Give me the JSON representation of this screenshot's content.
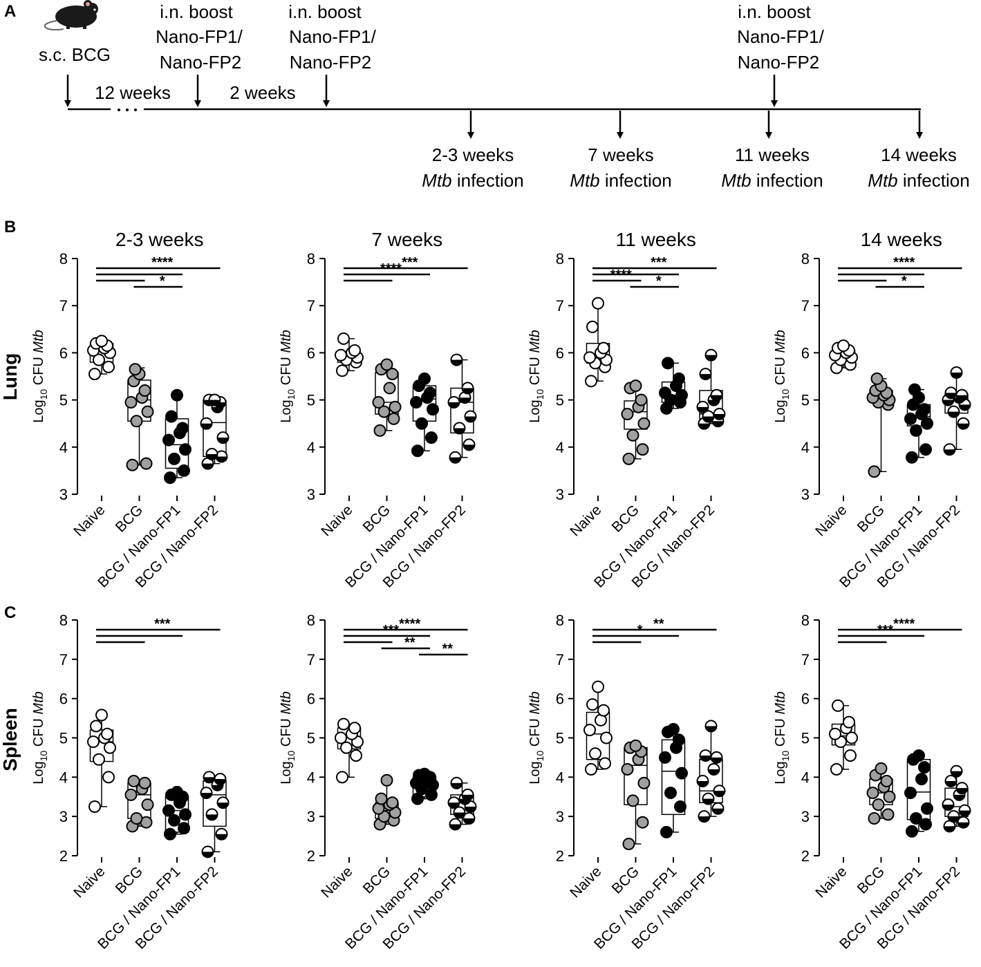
{
  "panels": {
    "a": "A",
    "b": "B",
    "c": "C"
  },
  "timeline": {
    "prime": "s.c. BCG",
    "boost_line1": "i.n. boost",
    "boost_line2": "Nano-FP1/",
    "boost_line3": "Nano-FP2",
    "gap_12": "12 weeks",
    "gap_2": "2 weeks",
    "infections": [
      {
        "time": "2-3 weeks",
        "label": "Mtb",
        "suffix": " infection"
      },
      {
        "time": "7 weeks",
        "label": "Mtb",
        "suffix": " infection"
      },
      {
        "time": "11 weeks",
        "label": "Mtb",
        "suffix": " infection"
      },
      {
        "time": "14 weeks",
        "label": "Mtb",
        "suffix": " infection"
      }
    ]
  },
  "row_labels": {
    "lung": "Lung",
    "spleen": "Spleen"
  },
  "ylabel": {
    "prefix": "Log",
    "sub": "10",
    "middle": " CFU ",
    "italic": "Mtb"
  },
  "groups": [
    "Naive",
    "BCG",
    "BCG / Nano-FP1",
    "BCG / Nano-FP2"
  ],
  "colors": {
    "naive_fill": "#ffffff",
    "bcg_fill": "#a0a0a0",
    "fp1_fill": "#000000",
    "fp2_fill": "half-white-half-black",
    "stroke": "#000000"
  },
  "chart_data": [
    {
      "type": "box-scatter",
      "organ": "Lung",
      "title": "2-3 weeks",
      "ylim": [
        3,
        8
      ],
      "yticks": [
        3,
        4,
        5,
        6,
        7,
        8
      ],
      "categories": [
        "Naive",
        "BCG",
        "BCG / Nano-FP1",
        "BCG / Nano-FP2"
      ],
      "series": [
        {
          "name": "Naive",
          "box": [
            5.55,
            5.8,
            6.05,
            6.2,
            6.25
          ],
          "points": [
            5.55,
            5.7,
            5.85,
            6.0,
            6.05,
            6.1,
            6.15,
            6.2,
            6.25
          ]
        },
        {
          "name": "BCG",
          "box": [
            3.62,
            4.55,
            5.0,
            5.42,
            5.68
          ],
          "points": [
            3.62,
            3.65,
            4.55,
            4.75,
            4.95,
            5.05,
            5.2,
            5.4,
            5.55,
            5.65
          ]
        },
        {
          "name": "BCG / Nano-FP1",
          "box": [
            3.35,
            3.55,
            4.05,
            4.6,
            5.1
          ],
          "points": [
            3.35,
            3.5,
            3.75,
            3.95,
            4.15,
            4.3,
            4.4,
            4.65,
            5.1
          ]
        },
        {
          "name": "BCG / Nano-FP2",
          "box": [
            3.65,
            3.8,
            4.52,
            4.98,
            5.0
          ],
          "points": [
            3.65,
            3.8,
            3.85,
            4.2,
            4.5,
            4.85,
            4.95,
            5.0,
            5.0
          ]
        }
      ],
      "significance": [
        {
          "from": 0,
          "to": 1,
          "label": ""
        },
        {
          "from": 0,
          "to": 2,
          "label": ""
        },
        {
          "from": 0,
          "to": 3,
          "label": "****"
        },
        {
          "from": 1,
          "to": 2,
          "label": "*"
        }
      ]
    },
    {
      "type": "box-scatter",
      "organ": "Lung",
      "title": "7 weeks",
      "ylim": [
        3,
        8
      ],
      "yticks": [
        3,
        4,
        5,
        6,
        7,
        8
      ],
      "categories": [
        "Naive",
        "BCG",
        "BCG / Nano-FP1",
        "BCG / Nano-FP2"
      ],
      "series": [
        {
          "name": "Naive",
          "box": [
            5.62,
            5.8,
            5.95,
            6.0,
            6.3
          ],
          "points": [
            5.62,
            5.8,
            5.85,
            5.9,
            5.95,
            6.0,
            6.05,
            6.3
          ]
        },
        {
          "name": "BCG",
          "box": [
            4.35,
            4.7,
            4.95,
            5.58,
            5.75
          ],
          "points": [
            4.35,
            4.6,
            4.75,
            4.85,
            4.95,
            5.25,
            5.55,
            5.65,
            5.75
          ]
        },
        {
          "name": "BCG / Nano-FP1",
          "box": [
            3.92,
            4.55,
            5.02,
            5.3,
            5.5
          ],
          "points": [
            3.92,
            4.2,
            4.5,
            4.8,
            4.95,
            5.05,
            5.15,
            5.3,
            5.45
          ]
        },
        {
          "name": "BCG / Nano-FP2",
          "box": [
            3.78,
            4.3,
            4.95,
            5.25,
            5.85
          ],
          "points": [
            3.78,
            4.05,
            4.4,
            4.65,
            4.95,
            5.05,
            5.25,
            5.85
          ]
        }
      ],
      "significance": [
        {
          "from": 0,
          "to": 1,
          "label": ""
        },
        {
          "from": 0,
          "to": 2,
          "label": "****"
        },
        {
          "from": 0,
          "to": 3,
          "label": "***"
        }
      ]
    },
    {
      "type": "box-scatter",
      "organ": "Lung",
      "title": "11 weeks",
      "ylim": [
        3,
        8
      ],
      "yticks": [
        3,
        4,
        5,
        6,
        7,
        8
      ],
      "categories": [
        "Naive",
        "BCG",
        "BCG / Nano-FP1",
        "BCG / Nano-FP2"
      ],
      "series": [
        {
          "name": "Naive",
          "box": [
            5.4,
            5.78,
            5.9,
            6.2,
            7.05
          ],
          "points": [
            5.4,
            5.7,
            5.78,
            5.85,
            5.9,
            6.0,
            6.1,
            6.55,
            7.05
          ]
        },
        {
          "name": "BCG",
          "box": [
            3.75,
            4.38,
            4.75,
            4.98,
            5.3
          ],
          "points": [
            3.75,
            3.95,
            4.25,
            4.5,
            4.7,
            4.85,
            5.0,
            5.25,
            5.3
          ]
        },
        {
          "name": "BCG / Nano-FP1",
          "box": [
            4.82,
            4.95,
            5.1,
            5.38,
            5.78
          ],
          "points": [
            4.82,
            4.95,
            5.0,
            5.1,
            5.15,
            5.3,
            5.45,
            5.78
          ]
        },
        {
          "name": "BCG / Nano-FP2",
          "box": [
            4.5,
            4.6,
            4.7,
            5.2,
            5.95
          ],
          "points": [
            4.5,
            4.55,
            4.65,
            4.7,
            4.85,
            5.0,
            5.1,
            5.55,
            5.95
          ]
        }
      ],
      "significance": [
        {
          "from": 0,
          "to": 1,
          "label": "****"
        },
        {
          "from": 0,
          "to": 2,
          "label": ""
        },
        {
          "from": 0,
          "to": 3,
          "label": "***"
        },
        {
          "from": 1,
          "to": 2,
          "label": "*"
        }
      ]
    },
    {
      "type": "box-scatter",
      "organ": "Lung",
      "title": "14 weeks",
      "ylim": [
        3,
        8
      ],
      "yticks": [
        3,
        4,
        5,
        6,
        7,
        8
      ],
      "categories": [
        "Naive",
        "BCG",
        "BCG / Nano-FP1",
        "BCG / Nano-FP2"
      ],
      "series": [
        {
          "name": "Naive",
          "box": [
            5.68,
            5.85,
            5.95,
            6.05,
            6.15
          ],
          "points": [
            5.68,
            5.75,
            5.85,
            5.9,
            5.95,
            6.0,
            6.05,
            6.1,
            6.15
          ]
        },
        {
          "name": "BCG",
          "box": [
            3.48,
            4.95,
            5.05,
            5.2,
            5.45
          ],
          "points": [
            3.48,
            4.9,
            4.95,
            5.0,
            5.05,
            5.1,
            5.15,
            5.2,
            5.3,
            5.45
          ]
        },
        {
          "name": "BCG / Nano-FP1",
          "box": [
            3.78,
            4.45,
            4.65,
            4.9,
            5.22
          ],
          "points": [
            3.78,
            3.95,
            4.35,
            4.5,
            4.6,
            4.7,
            4.8,
            4.9,
            5.05,
            5.22
          ]
        },
        {
          "name": "BCG / Nano-FP2",
          "box": [
            3.95,
            4.72,
            5.0,
            5.12,
            5.58
          ],
          "points": [
            3.95,
            4.5,
            4.75,
            4.9,
            5.0,
            5.05,
            5.1,
            5.15,
            5.58
          ]
        }
      ],
      "significance": [
        {
          "from": 0,
          "to": 1,
          "label": ""
        },
        {
          "from": 0,
          "to": 2,
          "label": ""
        },
        {
          "from": 0,
          "to": 3,
          "label": "****"
        },
        {
          "from": 1,
          "to": 2,
          "label": "*"
        }
      ]
    },
    {
      "type": "box-scatter",
      "organ": "Spleen",
      "title": "",
      "ylim": [
        2,
        8
      ],
      "yticks": [
        2,
        3,
        4,
        5,
        6,
        7,
        8
      ],
      "categories": [
        "Naive",
        "BCG",
        "BCG / Nano-FP1",
        "BCG / Nano-FP2"
      ],
      "series": [
        {
          "name": "Naive",
          "box": [
            3.25,
            4.4,
            4.9,
            5.2,
            5.58
          ],
          "points": [
            3.25,
            4.0,
            4.45,
            4.75,
            4.9,
            5.0,
            5.1,
            5.3,
            5.58
          ]
        },
        {
          "name": "BCG",
          "box": [
            2.75,
            2.95,
            3.55,
            3.85,
            3.9
          ],
          "points": [
            2.75,
            2.85,
            2.95,
            3.3,
            3.55,
            3.7,
            3.85,
            3.9
          ]
        },
        {
          "name": "BCG / Nano-FP1",
          "box": [
            2.55,
            2.6,
            3.15,
            3.5,
            3.62
          ],
          "points": [
            2.55,
            2.7,
            2.9,
            3.05,
            3.15,
            3.35,
            3.5,
            3.55,
            3.62
          ]
        },
        {
          "name": "BCG / Nano-FP2",
          "box": [
            2.1,
            2.75,
            3.55,
            3.9,
            4.0
          ],
          "points": [
            2.1,
            2.55,
            3.05,
            3.35,
            3.6,
            3.8,
            3.95,
            4.0
          ]
        }
      ],
      "significance": [
        {
          "from": 0,
          "to": 1,
          "label": ""
        },
        {
          "from": 0,
          "to": 2,
          "label": ""
        },
        {
          "from": 0,
          "to": 3,
          "label": "***"
        }
      ]
    },
    {
      "type": "box-scatter",
      "organ": "Spleen",
      "title": "",
      "ylim": [
        2,
        8
      ],
      "yticks": [
        2,
        3,
        4,
        5,
        6,
        7,
        8
      ],
      "categories": [
        "Naive",
        "BCG",
        "BCG / Nano-FP1",
        "BCG / Nano-FP2"
      ],
      "series": [
        {
          "name": "Naive",
          "box": [
            4.0,
            4.72,
            5.0,
            5.25,
            5.35
          ],
          "points": [
            4.0,
            4.55,
            4.75,
            4.9,
            5.0,
            5.1,
            5.25,
            5.35
          ]
        },
        {
          "name": "BCG",
          "box": [
            2.8,
            2.95,
            3.15,
            3.35,
            3.92
          ],
          "points": [
            2.8,
            2.9,
            3.0,
            3.1,
            3.2,
            3.3,
            3.35,
            3.45,
            3.92
          ]
        },
        {
          "name": "BCG / Nano-FP1",
          "box": [
            3.45,
            3.5,
            3.75,
            4.0,
            4.08
          ],
          "points": [
            3.45,
            3.55,
            3.7,
            3.8,
            3.85,
            3.95,
            4.0,
            4.05,
            4.08
          ]
        },
        {
          "name": "BCG / Nano-FP2",
          "box": [
            2.8,
            3.05,
            3.35,
            3.55,
            3.85
          ],
          "points": [
            2.8,
            2.95,
            3.1,
            3.25,
            3.35,
            3.45,
            3.55,
            3.85
          ]
        }
      ],
      "significance": [
        {
          "from": 0,
          "to": 1,
          "label": ""
        },
        {
          "from": 0,
          "to": 2,
          "label": "***"
        },
        {
          "from": 0,
          "to": 3,
          "label": "****"
        },
        {
          "from": 1,
          "to": 2,
          "label": "**"
        },
        {
          "from": 2,
          "to": 3,
          "label": "**"
        }
      ]
    },
    {
      "type": "box-scatter",
      "organ": "Spleen",
      "title": "",
      "ylim": [
        2,
        8
      ],
      "yticks": [
        2,
        3,
        4,
        5,
        6,
        7,
        8
      ],
      "categories": [
        "Naive",
        "BCG",
        "BCG / Nano-FP1",
        "BCG / Nano-FP2"
      ],
      "series": [
        {
          "name": "Naive",
          "box": [
            4.2,
            4.45,
            5.1,
            5.65,
            6.3
          ],
          "points": [
            4.2,
            4.35,
            4.6,
            5.0,
            5.2,
            5.45,
            5.7,
            5.85,
            6.3
          ]
        },
        {
          "name": "BCG",
          "box": [
            2.3,
            3.3,
            4.3,
            4.75,
            4.8
          ],
          "points": [
            2.3,
            2.85,
            3.4,
            3.85,
            4.2,
            4.45,
            4.65,
            4.75,
            4.8
          ]
        },
        {
          "name": "BCG / Nano-FP1",
          "box": [
            2.6,
            3.05,
            4.15,
            4.95,
            5.22
          ],
          "points": [
            2.6,
            3.25,
            3.6,
            4.1,
            4.5,
            4.75,
            4.95,
            5.15,
            5.22
          ]
        },
        {
          "name": "BCG / Nano-FP2",
          "box": [
            3.0,
            3.35,
            3.65,
            4.45,
            5.3
          ],
          "points": [
            3.0,
            3.2,
            3.45,
            3.65,
            3.9,
            4.2,
            4.5,
            4.55,
            5.3
          ]
        }
      ],
      "significance": [
        {
          "from": 0,
          "to": 1,
          "label": ""
        },
        {
          "from": 0,
          "to": 2,
          "label": "*"
        },
        {
          "from": 0,
          "to": 3,
          "label": "**"
        }
      ]
    },
    {
      "type": "box-scatter",
      "organ": "Spleen",
      "title": "",
      "ylim": [
        2,
        8
      ],
      "yticks": [
        2,
        3,
        4,
        5,
        6,
        7,
        8
      ],
      "categories": [
        "Naive",
        "BCG",
        "BCG / Nano-FP1",
        "BCG / Nano-FP2"
      ],
      "series": [
        {
          "name": "Naive",
          "box": [
            4.2,
            4.82,
            5.05,
            5.35,
            5.82
          ],
          "points": [
            4.2,
            4.55,
            4.9,
            5.0,
            5.1,
            5.25,
            5.4,
            5.82
          ]
        },
        {
          "name": "BCG",
          "box": [
            2.95,
            3.3,
            3.6,
            3.95,
            4.22
          ],
          "points": [
            2.95,
            3.05,
            3.3,
            3.5,
            3.6,
            3.75,
            3.9,
            4.05,
            4.22
          ]
        },
        {
          "name": "BCG / Nano-FP1",
          "box": [
            2.62,
            2.92,
            3.62,
            4.45,
            4.55
          ],
          "points": [
            2.62,
            2.8,
            2.95,
            3.2,
            3.6,
            3.95,
            4.25,
            4.45,
            4.55
          ]
        },
        {
          "name": "BCG / Nano-FP2",
          "box": [
            2.75,
            3.0,
            3.25,
            3.72,
            4.15
          ],
          "points": [
            2.75,
            2.85,
            3.0,
            3.15,
            3.3,
            3.55,
            3.72,
            3.9,
            4.15
          ]
        }
      ],
      "significance": [
        {
          "from": 0,
          "to": 1,
          "label": ""
        },
        {
          "from": 0,
          "to": 2,
          "label": "***"
        },
        {
          "from": 0,
          "to": 3,
          "label": "****"
        }
      ]
    }
  ]
}
